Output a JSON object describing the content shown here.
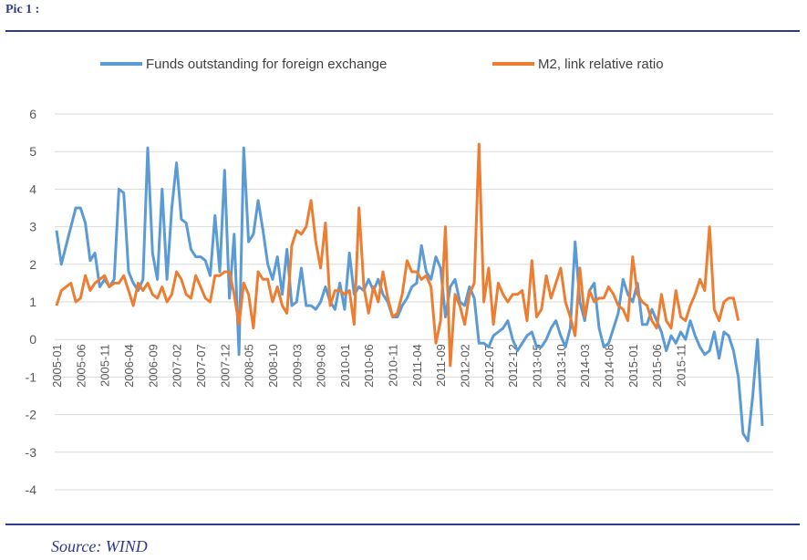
{
  "header": {
    "pic_label": "Pic 1 :"
  },
  "footer": {
    "source": "Source: WIND"
  },
  "chart_data": {
    "type": "line",
    "title": "",
    "xlabel": "",
    "ylabel": "",
    "ylim": [
      -4,
      6
    ],
    "yticks": [
      6,
      5,
      4,
      3,
      2,
      1,
      0,
      -1,
      -2,
      -3,
      -4
    ],
    "grid": true,
    "legend_position": "top",
    "x_start": "2005-01",
    "tick_labels": [
      "2005-01",
      "2005-06",
      "2005-11",
      "2006-04",
      "2006-09",
      "2007-02",
      "2007-07",
      "2007-12",
      "2008-05",
      "2008-10",
      "2009-03",
      "2009-08",
      "2010-01",
      "2010-06",
      "2010-11",
      "2011-04",
      "2011-09",
      "2012-02",
      "2012-07",
      "2012-12",
      "2013-05",
      "2013-10",
      "2014-03",
      "2014-08",
      "2015-01",
      "2015-06",
      "2015-11"
    ],
    "series": [
      {
        "name": "Funds outstanding for foreign exchange",
        "color": "#5b9bd5",
        "values": [
          2.9,
          2.0,
          2.5,
          3.0,
          3.5,
          3.5,
          3.1,
          2.1,
          2.3,
          1.4,
          1.6,
          1.4,
          1.6,
          4.0,
          3.9,
          1.8,
          1.5,
          1.3,
          1.6,
          5.1,
          2.3,
          1.6,
          4.0,
          1.6,
          3.5,
          4.7,
          3.2,
          3.1,
          2.4,
          2.2,
          2.2,
          2.1,
          1.7,
          3.3,
          1.8,
          4.5,
          1.1,
          2.8,
          -0.4,
          5.1,
          2.6,
          2.8,
          3.7,
          2.9,
          2.0,
          1.6,
          2.2,
          1.2,
          2.4,
          0.9,
          1.0,
          1.9,
          0.9,
          0.9,
          0.8,
          1.0,
          1.4,
          1.0,
          0.8,
          1.5,
          0.8,
          2.3,
          1.2,
          1.4,
          1.3,
          1.6,
          1.3,
          1.6,
          1.2,
          1.0,
          0.6,
          0.6,
          0.9,
          1.1,
          1.4,
          1.5,
          2.5,
          1.8,
          1.6,
          2.2,
          1.9,
          0.6,
          1.4,
          1.6,
          1.0,
          0.9,
          1.4,
          1.1,
          -0.1,
          -0.1,
          -0.2,
          0.1,
          0.2,
          0.3,
          0.5,
          0.0,
          -0.3,
          -0.1,
          0.1,
          0.2,
          -0.2,
          -0.2,
          0.0,
          0.3,
          0.5,
          0.1,
          -0.2,
          0.3,
          2.6,
          1.0,
          0.5,
          1.3,
          1.5,
          0.3,
          -0.2,
          -0.1,
          0.3,
          0.7,
          1.6,
          1.2,
          1.0,
          1.5,
          0.4,
          0.4,
          0.8,
          0.5,
          0.2,
          -0.3,
          0.1,
          -0.1,
          0.2,
          0.0,
          0.5,
          0.1,
          -0.2,
          -0.4,
          -0.3,
          0.2,
          -0.5,
          0.2,
          0.1,
          -0.3,
          -1.0,
          -2.5,
          -2.7,
          -1.5,
          0.0,
          -2.3
        ],
        "points_note": ""
      },
      {
        "name": "M2, link relative ratio",
        "color": "#ed7d31",
        "values": [
          0.9,
          1.3,
          1.4,
          1.5,
          1.0,
          1.1,
          1.7,
          1.3,
          1.5,
          1.6,
          1.7,
          1.4,
          1.5,
          1.5,
          1.7,
          1.3,
          0.9,
          1.5,
          1.3,
          1.5,
          1.2,
          1.1,
          1.4,
          1.0,
          1.2,
          1.8,
          1.6,
          1.2,
          1.1,
          1.7,
          1.4,
          1.1,
          1.0,
          1.7,
          1.7,
          1.8,
          1.8,
          1.2,
          0.4,
          1.5,
          1.2,
          0.3,
          1.8,
          1.6,
          1.6,
          1.0,
          1.4,
          0.9,
          0.7,
          2.5,
          2.9,
          2.8,
          3.0,
          3.7,
          2.6,
          1.9,
          3.1,
          0.9,
          1.3,
          1.3,
          1.2,
          1.3,
          0.4,
          3.5,
          1.4,
          0.7,
          1.4,
          1.0,
          1.8,
          1.1,
          0.6,
          0.7,
          1.2,
          2.1,
          1.8,
          1.8,
          1.6,
          1.7,
          1.4,
          -0.1,
          0.5,
          3.0,
          -0.7,
          1.2,
          0.9,
          0.4,
          1.2,
          1.5,
          5.2,
          1.0,
          1.9,
          0.4,
          1.5,
          1.2,
          1.0,
          1.2,
          1.2,
          1.3,
          0.5,
          2.1,
          0.6,
          0.8,
          1.7,
          1.1,
          1.5,
          1.9,
          1.0,
          0.6,
          0.1,
          1.9,
          0.6,
          1.3,
          1.0,
          1.1,
          1.1,
          1.4,
          1.2,
          0.9,
          0.8,
          0.5,
          2.2,
          1.2,
          1.0,
          0.9,
          0.5,
          0.3,
          1.2,
          0.5,
          0.3,
          1.3,
          0.6,
          0.5,
          0.9,
          1.2,
          1.6,
          1.3,
          3.0,
          0.8,
          0.5,
          1.0,
          1.1,
          1.1,
          0.5
        ]
      }
    ]
  }
}
